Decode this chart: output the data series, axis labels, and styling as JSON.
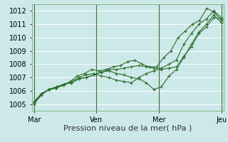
{
  "title": "",
  "xlabel": "Pression niveau de la mer( hPa )",
  "ylim": [
    1004.5,
    1012.5
  ],
  "yticks": [
    1005,
    1006,
    1007,
    1008,
    1009,
    1010,
    1011,
    1012
  ],
  "xtick_labels": [
    "Mar",
    "Ven",
    "Mer",
    "Jeu"
  ],
  "bg_color": "#cce8e8",
  "grid_color": "#ffffff",
  "line_color": "#2d6e2d",
  "lines": [
    [
      1005.0,
      1005.7,
      1006.1,
      1006.2,
      1006.4,
      1006.7,
      1007.1,
      1007.3,
      1007.6,
      1007.5,
      1007.6,
      1007.8,
      1007.9,
      1008.2,
      1008.3,
      1008.0,
      1007.8,
      1007.8,
      1008.5,
      1009.0,
      1010.0,
      1010.5,
      1011.0,
      1011.3,
      1012.2,
      1011.9,
      1011.3
    ],
    [
      1005.1,
      1005.8,
      1006.1,
      1006.2,
      1006.5,
      1006.7,
      1007.0,
      1007.2,
      1007.3,
      1007.1,
      1007.0,
      1006.8,
      1006.7,
      1006.6,
      1007.0,
      1007.3,
      1007.5,
      1007.7,
      1008.0,
      1008.3,
      1009.5,
      1010.3,
      1011.0,
      1011.4,
      1012.0,
      1011.5
    ],
    [
      1005.2,
      1005.8,
      1006.1,
      1006.3,
      1006.5,
      1006.6,
      1006.9,
      1007.0,
      1007.2,
      1007.4,
      1007.5,
      1007.3,
      1007.2,
      1007.0,
      1006.9,
      1006.6,
      1006.1,
      1006.3,
      1007.1,
      1007.6,
      1008.5,
      1009.5,
      1010.4,
      1011.0,
      1011.7,
      1011.1
    ],
    [
      1005.1,
      1005.7,
      1006.1,
      1006.3,
      1006.5,
      1006.6,
      1006.9,
      1007.0,
      1007.2,
      1007.4,
      1007.6,
      1007.6,
      1007.7,
      1007.8,
      1007.9,
      1007.8,
      1007.7,
      1007.6,
      1007.7,
      1007.8,
      1008.6,
      1009.3,
      1010.3,
      1010.8,
      1011.5,
      1011.4
    ]
  ],
  "day_tick_indices": [
    0,
    8.67,
    17.33,
    26
  ],
  "font_size_label": 8,
  "font_size_tick": 7
}
